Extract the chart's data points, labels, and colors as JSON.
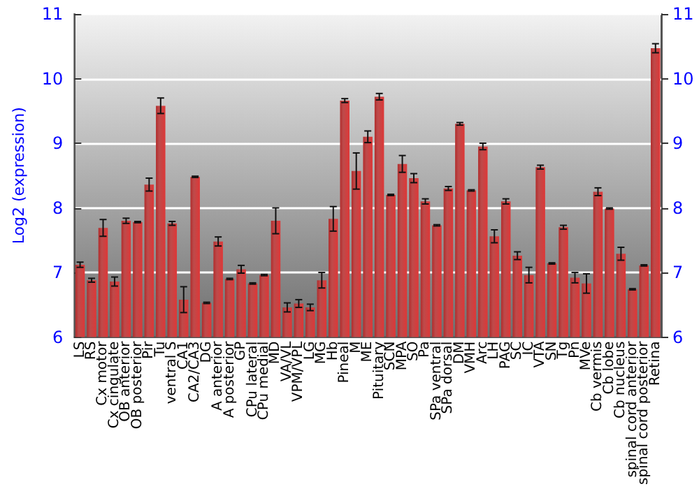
{
  "chart_data": {
    "type": "bar",
    "ylabel": "Log2 (expression)",
    "categories": [
      "LS",
      "RS",
      "Cx motor",
      "Cx cingulate",
      "OB anterior",
      "OB posterior",
      "Pir",
      "Tu",
      "ventral S",
      "CA1",
      "CA2/CA3",
      "DG",
      "A anterior",
      "A posterior",
      "GP",
      "CPu lateral",
      "CPu medial",
      "MD",
      "VA/VL",
      "VPM/VPL",
      "LG",
      "MG",
      "Hb",
      "Pineal",
      "M",
      "ME",
      "Pituitary",
      "SCN",
      "MPA",
      "SO",
      "Pa",
      "SPa ventral",
      "SPa dorsal",
      "DM",
      "VMH",
      "Arc",
      "LH",
      "PAG",
      "SC",
      "IC",
      "VTA",
      "SN",
      "Tg",
      "Pn",
      "MVe",
      "Cb vermis",
      "Cb lobe",
      "Cb nucleus",
      "spinal cord anterior",
      "spinal cord posterior",
      "Retina"
    ],
    "values": [
      7.12,
      6.88,
      7.69,
      6.86,
      7.8,
      7.78,
      8.36,
      9.58,
      7.76,
      6.58,
      8.48,
      6.53,
      7.48,
      6.9,
      7.05,
      6.83,
      6.96,
      7.8,
      6.46,
      6.52,
      6.46,
      6.88,
      7.83,
      9.66,
      8.57,
      9.1,
      9.72,
      8.2,
      8.68,
      8.46,
      8.1,
      7.73,
      8.3,
      9.3,
      8.27,
      8.95,
      7.56,
      8.1,
      7.26,
      6.96,
      8.63,
      7.14,
      7.7,
      6.92,
      6.83,
      8.25,
      7.99,
      7.29,
      6.74,
      7.11,
      10.47
    ],
    "errors": [
      0.04,
      0.03,
      0.13,
      0.07,
      0.04,
      0.01,
      0.1,
      0.12,
      0.03,
      0.2,
      0.01,
      0.01,
      0.07,
      0.01,
      0.06,
      0.01,
      0.01,
      0.2,
      0.07,
      0.06,
      0.05,
      0.12,
      0.19,
      0.03,
      0.28,
      0.09,
      0.05,
      0.01,
      0.13,
      0.07,
      0.04,
      0.01,
      0.03,
      0.02,
      0.01,
      0.05,
      0.1,
      0.04,
      0.06,
      0.12,
      0.03,
      0.01,
      0.03,
      0.08,
      0.15,
      0.06,
      0.01,
      0.1,
      0.01,
      0.01,
      0.07
    ],
    "color": "#b22c2c",
    "ylim": [
      6,
      11
    ],
    "yticks": [
      6,
      7,
      8,
      9,
      10,
      11
    ],
    "y2lim": [
      6,
      11
    ],
    "y2ticks": [
      6,
      7,
      8,
      9,
      10,
      11
    ],
    "grid": "y"
  }
}
